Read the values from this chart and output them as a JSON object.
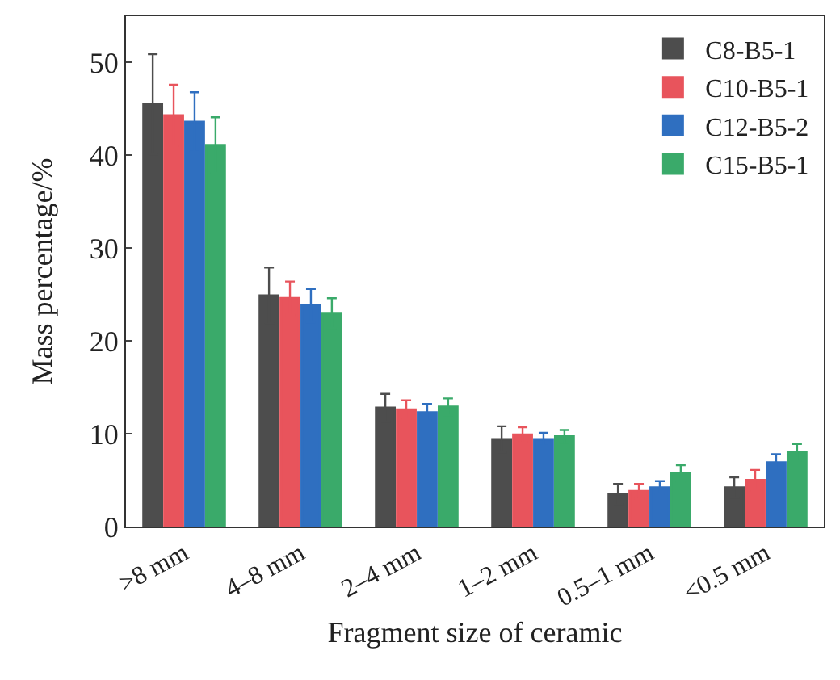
{
  "chart_data": {
    "type": "bar",
    "xlabel": "Fragment size of ceramic",
    "ylabel": "Mass percentage/%",
    "categories": [
      ">8 mm",
      "4–8 mm",
      "2–4 mm",
      "1–2 mm",
      "0.5–1 mm",
      "<0.5 mm"
    ],
    "series": [
      {
        "name": "C8-B5-1",
        "color": "#4d4d4d",
        "values": [
          45.5,
          24.9,
          12.8,
          9.4,
          3.5,
          4.2
        ],
        "errors": [
          5.4,
          3.0,
          1.5,
          1.4,
          1.1,
          1.1
        ]
      },
      {
        "name": "C10-B5-1",
        "color": "#e8545c",
        "values": [
          44.3,
          24.6,
          12.6,
          9.9,
          3.8,
          5.0
        ],
        "errors": [
          3.3,
          1.8,
          1.0,
          0.8,
          0.8,
          1.1
        ]
      },
      {
        "name": "C12-B5-2",
        "color": "#2f6fc0",
        "values": [
          43.6,
          23.8,
          12.3,
          9.4,
          4.2,
          6.9
        ],
        "errors": [
          3.2,
          1.8,
          0.9,
          0.7,
          0.7,
          0.9
        ]
      },
      {
        "name": "C15-B5-1",
        "color": "#3aaa6a",
        "values": [
          41.1,
          23.0,
          12.9,
          9.7,
          5.7,
          8.0
        ],
        "errors": [
          3.0,
          1.6,
          0.9,
          0.7,
          0.9,
          0.9
        ]
      }
    ],
    "ylim": [
      0,
      55
    ],
    "yticks": [
      0,
      10,
      20,
      30,
      40,
      50
    ],
    "grid": false,
    "legend": "top right"
  }
}
